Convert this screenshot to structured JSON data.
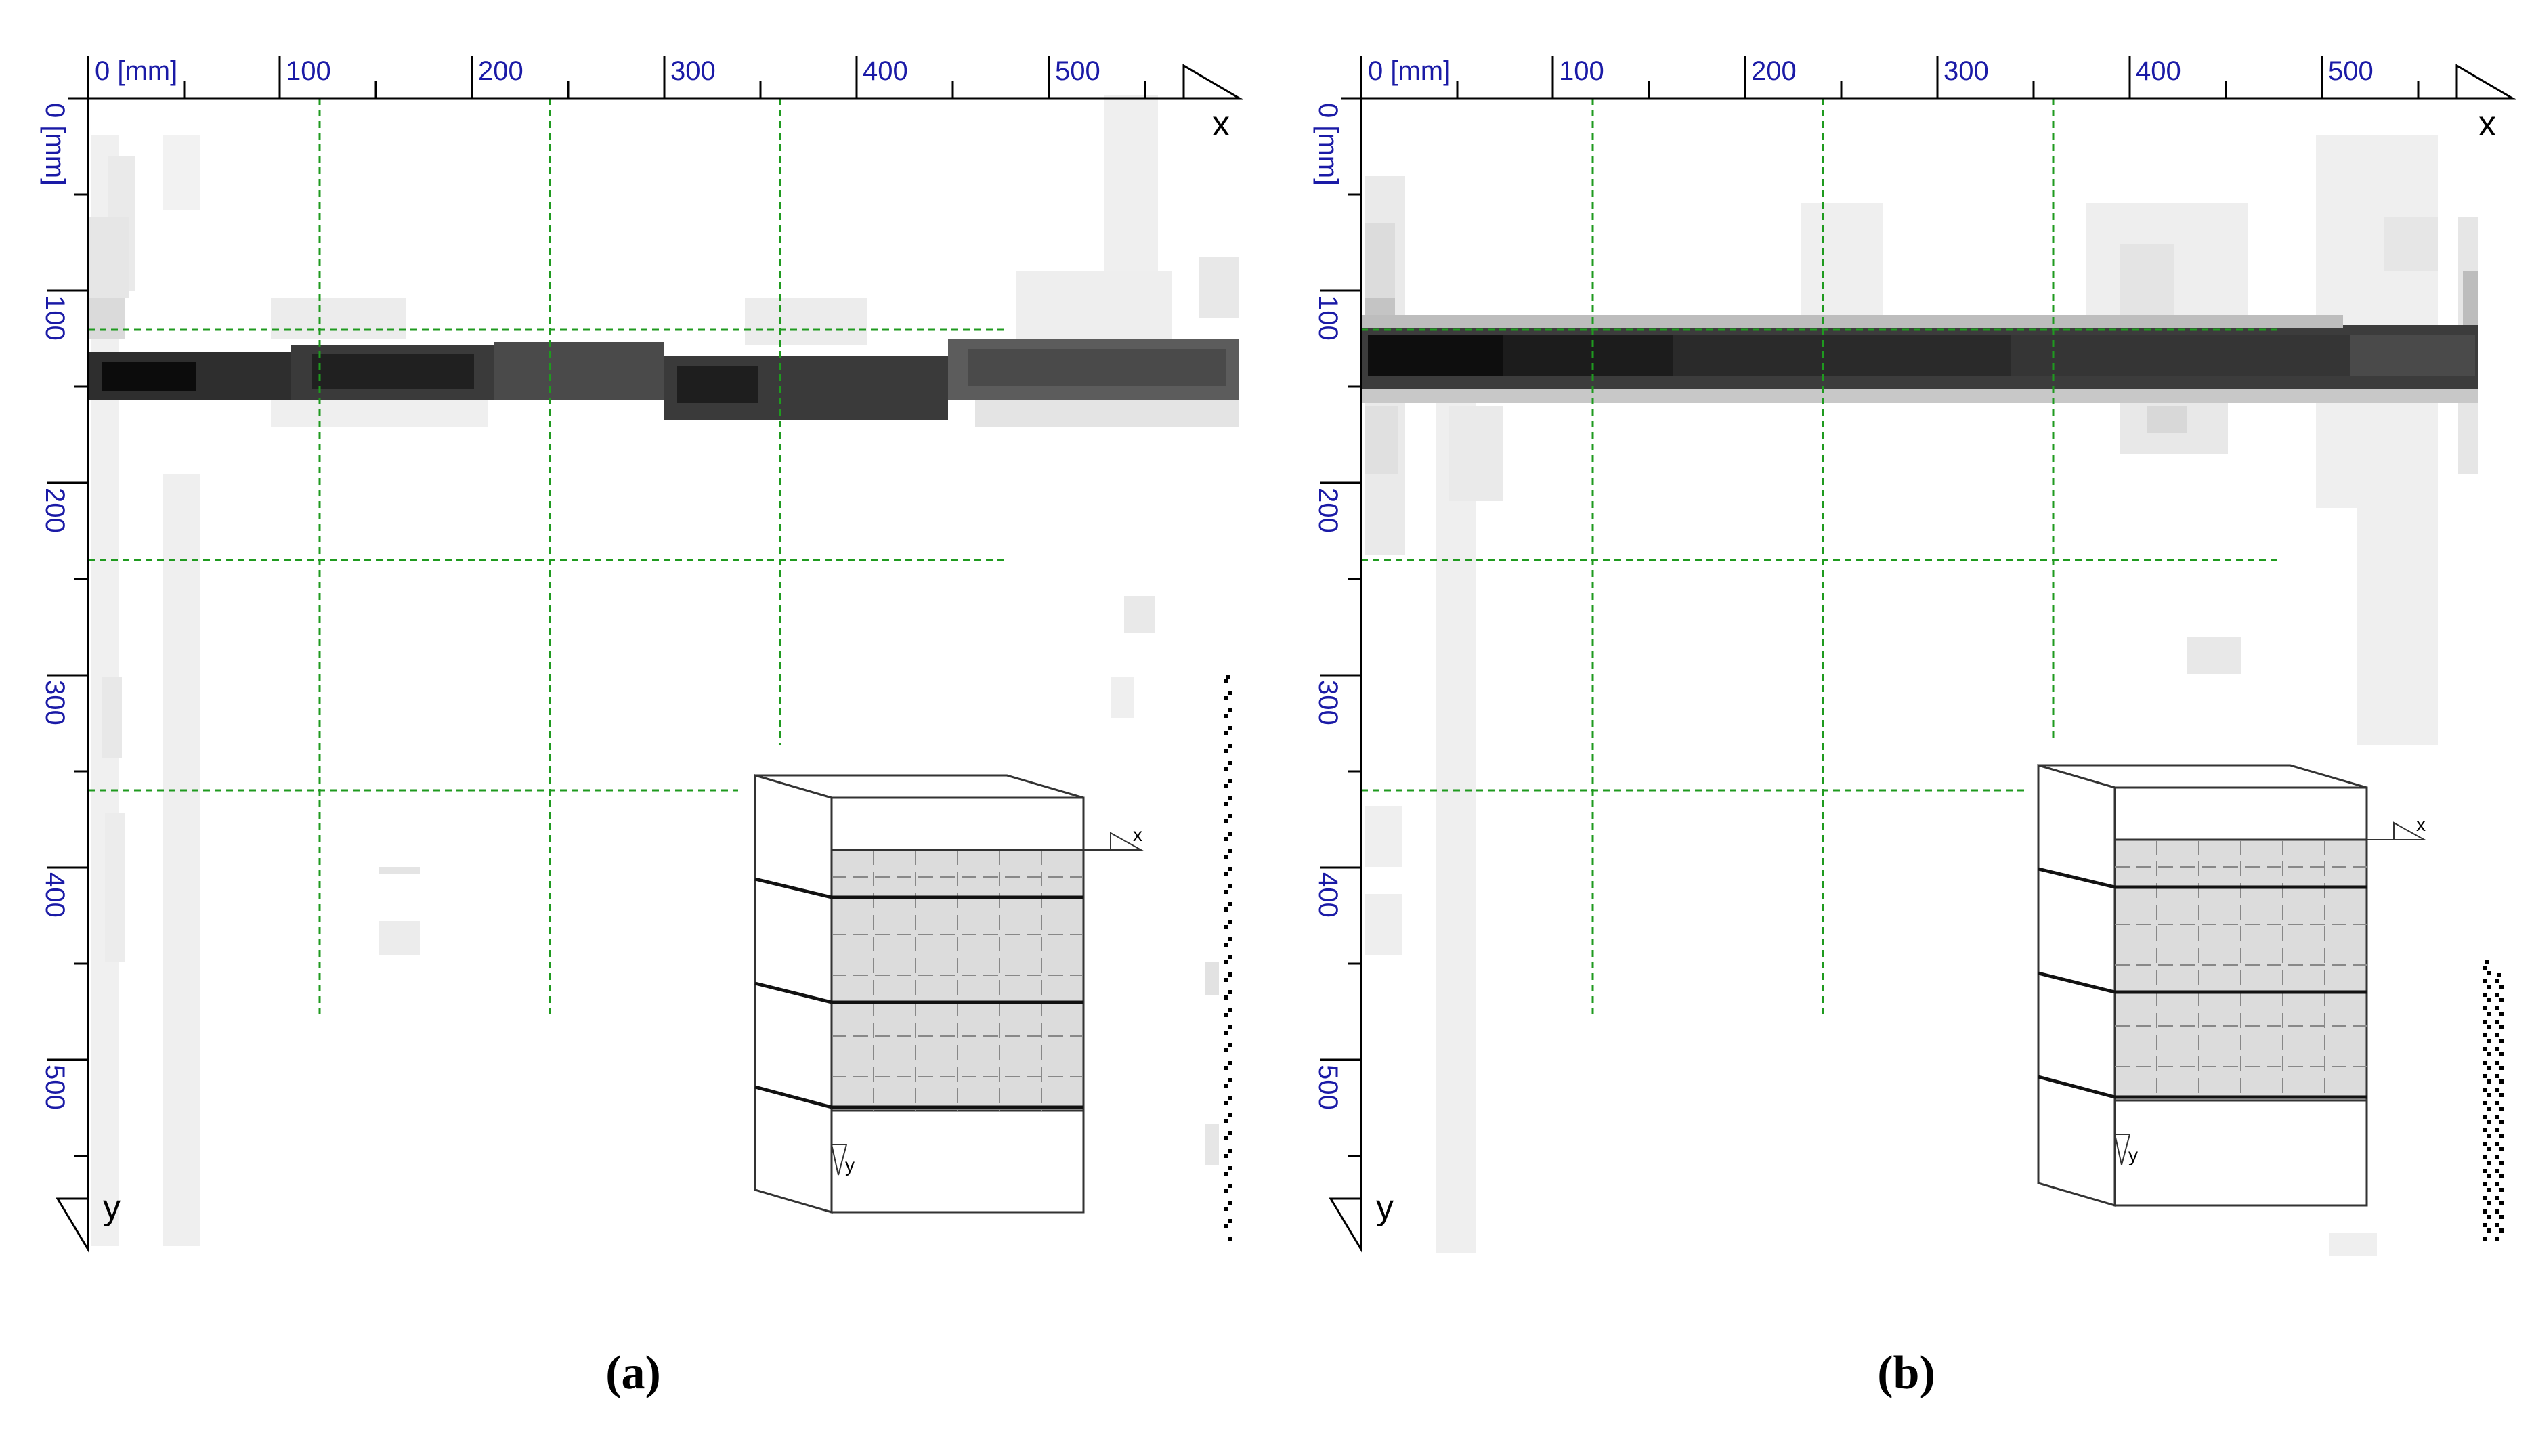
{
  "figure": {
    "panels": [
      {
        "id": "a",
        "caption": "(a)",
        "x_ticks": [
          "0 [mm]",
          "100",
          "200",
          "300",
          "400",
          "500"
        ],
        "y_ticks": [
          "0 [mm]",
          "100",
          "200",
          "300",
          "400",
          "500"
        ],
        "x_axis_letter": "x",
        "y_axis_letter": "y",
        "inset_x_letter": "x",
        "inset_y_letter": "y"
      },
      {
        "id": "b",
        "caption": "(b)",
        "x_ticks": [
          "0 [mm]",
          "100",
          "200",
          "300",
          "400",
          "500"
        ],
        "y_ticks": [
          "0 [mm]",
          "100",
          "200",
          "300",
          "400",
          "500"
        ],
        "x_axis_letter": "x",
        "y_axis_letter": "y",
        "inset_x_letter": "x",
        "inset_y_letter": "y"
      }
    ],
    "colors": {
      "tick_label": "#1a1aa6",
      "grid_line": "#1f9a1f",
      "axis": "#000000",
      "inset_fill": "#dcdcdc"
    }
  }
}
